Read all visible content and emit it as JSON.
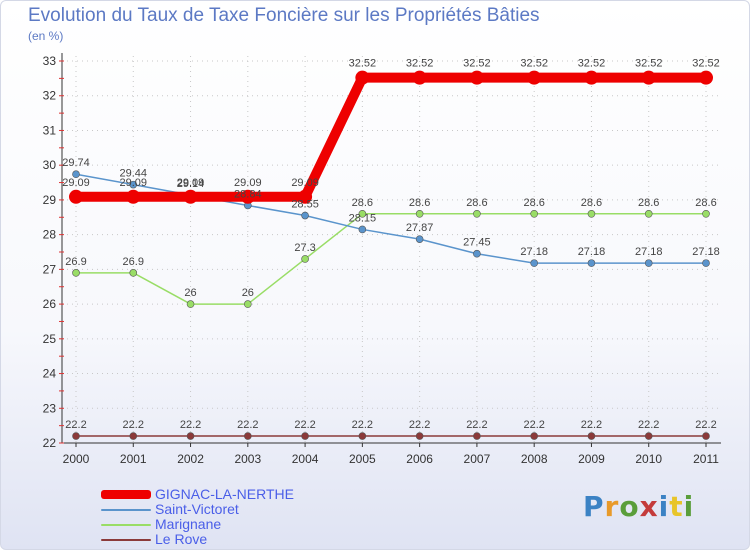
{
  "title": "Evolution du Taux de Taxe Foncière sur les Propriétés Bâties",
  "unit_label": "(en %)",
  "logo_text": "Proxiti",
  "chart_data": {
    "type": "line",
    "title": "Evolution du Taux de Taxe Foncière sur les Propriétés Bâties",
    "ylabel": "(en %)",
    "xlabel": "",
    "ylim": [
      22,
      33
    ],
    "yticks": [
      "22",
      "23",
      "24",
      "25",
      "26",
      "27",
      "28",
      "29",
      "30",
      "31",
      "32",
      "33"
    ],
    "categories": [
      "2000",
      "2001",
      "2002",
      "2003",
      "2004",
      "2005",
      "2006",
      "2007",
      "2008",
      "2009",
      "2010",
      "2011"
    ],
    "series": [
      {
        "name": "GIGNAC-LA-NERTHE",
        "color": "#ee0000",
        "values": [
          29.09,
          29.09,
          29.09,
          29.09,
          29.09,
          32.52,
          32.52,
          32.52,
          32.52,
          32.52,
          32.52,
          32.52
        ],
        "labels": [
          "29.09",
          "29.09",
          "29.09",
          "29.09",
          "29.09",
          "32.52",
          "32.52",
          "32.52",
          "32.52",
          "32.52",
          "32.52",
          "32.52"
        ]
      },
      {
        "name": "Saint-Victoret",
        "color": "#5a94cc",
        "values": [
          29.74,
          29.44,
          29.14,
          28.84,
          28.55,
          28.15,
          27.87,
          27.45,
          27.18,
          27.18,
          27.18,
          27.18
        ],
        "labels": [
          "29.74",
          "29.44",
          "29.14",
          "28.84",
          "28.55",
          "28.15",
          "27.87",
          "27.45",
          "27.18",
          "27.18",
          "27.18",
          "27.18"
        ]
      },
      {
        "name": "Marignane",
        "color": "#99dd66",
        "values": [
          26.9,
          26.9,
          26.0,
          26.0,
          27.3,
          28.6,
          28.6,
          28.6,
          28.6,
          28.6,
          28.6,
          28.6
        ],
        "labels": [
          "26.9",
          "26.9",
          "26",
          "26",
          "27.3",
          "28.6",
          "28.6",
          "28.6",
          "28.6",
          "28.6",
          "28.6",
          "28.6"
        ]
      },
      {
        "name": "Le Rove",
        "color": "#8b3a3a",
        "values": [
          22.2,
          22.2,
          22.2,
          22.2,
          22.2,
          22.2,
          22.2,
          22.2,
          22.2,
          22.2,
          22.2,
          22.2
        ],
        "labels": [
          "22.2",
          "22.2",
          "22.2",
          "22.2",
          "22.2",
          "22.2",
          "22.2",
          "22.2",
          "22.2",
          "22.2",
          "22.2",
          "22.2"
        ]
      }
    ],
    "legend_position": "bottom-left"
  }
}
